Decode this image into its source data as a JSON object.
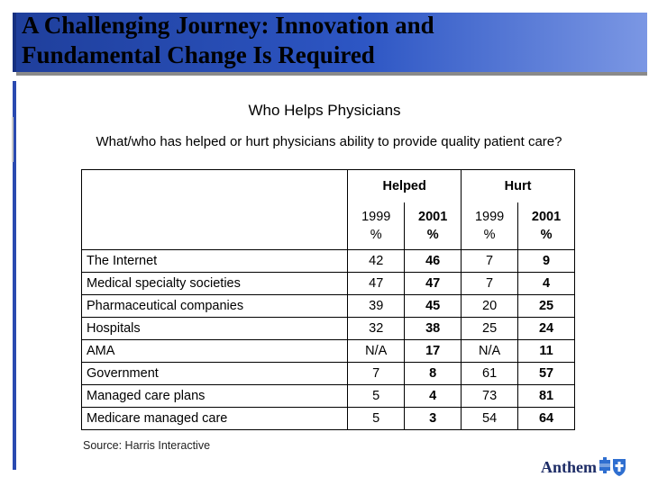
{
  "title": {
    "line1": "A Challenging Journey: Innovation and",
    "line2": "Fundamental Change Is Required"
  },
  "subtitle": "Who Helps Physicians",
  "question": "What/who has helped or hurt physicians ability to provide quality patient care?",
  "table": {
    "groups": [
      "Helped",
      "Hurt"
    ],
    "years": [
      {
        "year": "1999",
        "unit": "%"
      },
      {
        "year": "2001",
        "unit": "%"
      },
      {
        "year": "1999",
        "unit": "%"
      },
      {
        "year": "2001",
        "unit": "%"
      }
    ],
    "rows": [
      {
        "label": "The Internet",
        "values": [
          "42",
          "46",
          "7",
          "9"
        ]
      },
      {
        "label": "Medical specialty societies",
        "values": [
          "47",
          "47",
          "7",
          "4"
        ]
      },
      {
        "label": "Pharmaceutical companies",
        "values": [
          "39",
          "45",
          "20",
          "25"
        ]
      },
      {
        "label": "Hospitals",
        "values": [
          "32",
          "38",
          "25",
          "24"
        ]
      },
      {
        "label": "AMA",
        "values": [
          "N/A",
          "17",
          "N/A",
          "11"
        ]
      },
      {
        "label": "Government",
        "values": [
          "7",
          "8",
          "61",
          "57"
        ]
      },
      {
        "label": "Managed care plans",
        "values": [
          "5",
          "4",
          "73",
          "81"
        ]
      },
      {
        "label": "Medicare managed care",
        "values": [
          "5",
          "3",
          "54",
          "64"
        ]
      }
    ]
  },
  "source": "Source: Harris Interactive",
  "logo": {
    "text": "Anthem",
    "icon": "blue-cross-blue-shield-icon"
  },
  "colors": {
    "title_bar": "#2d56c4",
    "left_rule": "#2a4ab0",
    "logo_blue": "#1d2c66"
  }
}
